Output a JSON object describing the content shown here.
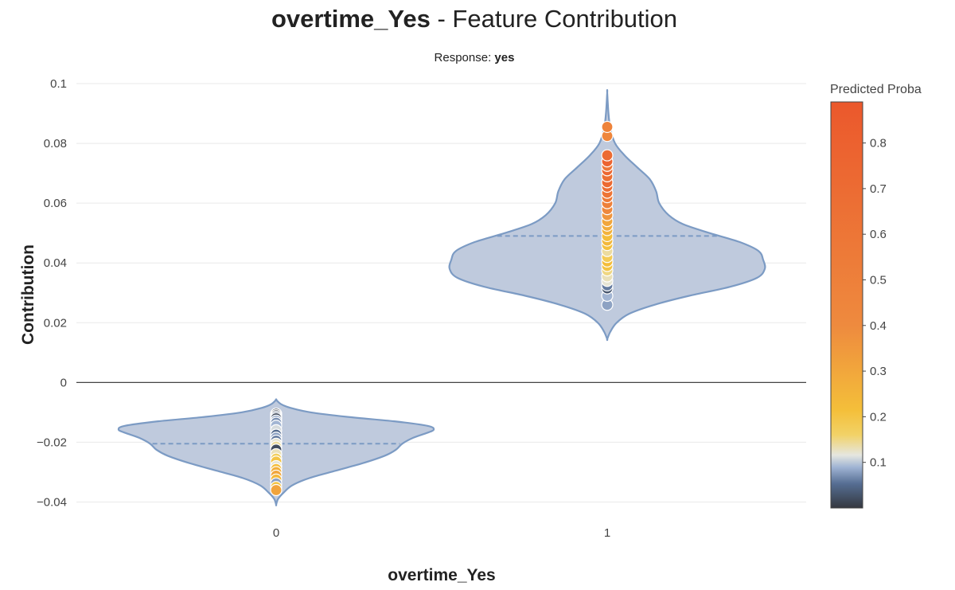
{
  "chart_data": {
    "type": "violin",
    "title_bold": "overtime_Yes",
    "title_rest": " - Feature Contribution",
    "subtitle_label": "Response: ",
    "subtitle_value": "yes",
    "xlabel": "overtime_Yes",
    "ylabel": "Contribution",
    "categories": [
      "0",
      "1"
    ],
    "ylim": [
      -0.046,
      0.1
    ],
    "yticks": [
      -0.04,
      -0.02,
      0,
      0.02,
      0.04,
      0.06,
      0.08,
      0.1
    ],
    "ytick_labels": [
      "−0.04",
      "−0.02",
      "0",
      "0.02",
      "0.04",
      "0.06",
      "0.08",
      "0.1"
    ],
    "grid": true,
    "colorbar": {
      "title": "Predicted Proba",
      "range": [
        0.0,
        0.89
      ],
      "ticks": [
        0.1,
        0.2,
        0.3,
        0.4,
        0.5,
        0.6,
        0.7,
        0.8
      ],
      "tick_labels": [
        "0.1",
        "0.2",
        "0.3",
        "0.4",
        "0.5",
        "0.6",
        "0.7",
        "0.8"
      ],
      "colors": [
        {
          "stop": 0.0,
          "color": "#34383f"
        },
        {
          "stop": 0.06,
          "color": "#566e93"
        },
        {
          "stop": 0.1,
          "color": "#9fb3d3"
        },
        {
          "stop": 0.13,
          "color": "#e5e6e0"
        },
        {
          "stop": 0.18,
          "color": "#f2d267"
        },
        {
          "stop": 0.24,
          "color": "#f4bf3a"
        },
        {
          "stop": 0.45,
          "color": "#ee8a3e"
        },
        {
          "stop": 1.0,
          "color": "#eb582c"
        }
      ]
    },
    "violins": [
      {
        "category": "0",
        "median": -0.0205,
        "profile": [
          {
            "y": -0.0409,
            "w": 0.0
          },
          {
            "y": -0.039,
            "w": 0.012
          },
          {
            "y": -0.037,
            "w": 0.045
          },
          {
            "y": -0.0345,
            "w": 0.1
          },
          {
            "y": -0.032,
            "w": 0.21
          },
          {
            "y": -0.0295,
            "w": 0.38
          },
          {
            "y": -0.027,
            "w": 0.55
          },
          {
            "y": -0.0245,
            "w": 0.69
          },
          {
            "y": -0.0225,
            "w": 0.76
          },
          {
            "y": -0.0205,
            "w": 0.8
          },
          {
            "y": -0.0185,
            "w": 0.87
          },
          {
            "y": -0.017,
            "w": 0.95
          },
          {
            "y": -0.0158,
            "w": 1.0
          },
          {
            "y": -0.0145,
            "w": 0.96
          },
          {
            "y": -0.013,
            "w": 0.75
          },
          {
            "y": -0.0115,
            "w": 0.45
          },
          {
            "y": -0.01,
            "w": 0.22
          },
          {
            "y": -0.0085,
            "w": 0.09
          },
          {
            "y": -0.0072,
            "w": 0.03
          },
          {
            "y": -0.0058,
            "w": 0.0
          }
        ],
        "points": [
          {
            "y": -0.0105,
            "p": 0.0
          },
          {
            "y": -0.011,
            "p": 0.01
          },
          {
            "y": -0.0115,
            "p": 0.04
          },
          {
            "y": -0.012,
            "p": 0.02
          },
          {
            "y": -0.0128,
            "p": 0.08
          },
          {
            "y": -0.0135,
            "p": 0.07
          },
          {
            "y": -0.0145,
            "p": 0.09
          },
          {
            "y": -0.016,
            "p": 0.11
          },
          {
            "y": -0.0175,
            "p": 0.05
          },
          {
            "y": -0.0185,
            "p": 0.08
          },
          {
            "y": -0.0195,
            "p": 0.06
          },
          {
            "y": -0.0205,
            "p": 0.12
          },
          {
            "y": -0.0215,
            "p": 0.14
          },
          {
            "y": -0.0225,
            "p": 0.02
          },
          {
            "y": -0.024,
            "p": 0.13
          },
          {
            "y": -0.0255,
            "p": 0.17
          },
          {
            "y": -0.0265,
            "p": 0.2
          },
          {
            "y": -0.028,
            "p": 0.12
          },
          {
            "y": -0.029,
            "p": 0.22
          },
          {
            "y": -0.03,
            "p": 0.27
          },
          {
            "y": -0.0312,
            "p": 0.3
          },
          {
            "y": -0.0325,
            "p": 0.24
          },
          {
            "y": -0.0338,
            "p": 0.08
          },
          {
            "y": -0.035,
            "p": 0.2
          },
          {
            "y": -0.036,
            "p": 0.31
          }
        ]
      },
      {
        "category": "1",
        "median": 0.049,
        "profile": [
          {
            "y": 0.0145,
            "w": 0.0
          },
          {
            "y": 0.017,
            "w": 0.02
          },
          {
            "y": 0.02,
            "w": 0.06
          },
          {
            "y": 0.023,
            "w": 0.14
          },
          {
            "y": 0.026,
            "w": 0.3
          },
          {
            "y": 0.029,
            "w": 0.52
          },
          {
            "y": 0.032,
            "w": 0.78
          },
          {
            "y": 0.035,
            "w": 0.95
          },
          {
            "y": 0.038,
            "w": 1.0
          },
          {
            "y": 0.041,
            "w": 0.99
          },
          {
            "y": 0.044,
            "w": 0.96
          },
          {
            "y": 0.047,
            "w": 0.84
          },
          {
            "y": 0.05,
            "w": 0.65
          },
          {
            "y": 0.053,
            "w": 0.48
          },
          {
            "y": 0.056,
            "w": 0.39
          },
          {
            "y": 0.06,
            "w": 0.33
          },
          {
            "y": 0.064,
            "w": 0.31
          },
          {
            "y": 0.068,
            "w": 0.27
          },
          {
            "y": 0.072,
            "w": 0.19
          },
          {
            "y": 0.076,
            "w": 0.11
          },
          {
            "y": 0.08,
            "w": 0.05
          },
          {
            "y": 0.085,
            "w": 0.02
          },
          {
            "y": 0.09,
            "w": 0.008
          },
          {
            "y": 0.097,
            "w": 0.0
          }
        ],
        "points": [
          {
            "y": 0.026,
            "p": 0.08
          },
          {
            "y": 0.029,
            "p": 0.09
          },
          {
            "y": 0.0315,
            "p": 0.03
          },
          {
            "y": 0.0325,
            "p": 0.06
          },
          {
            "y": 0.034,
            "p": 0.12
          },
          {
            "y": 0.0355,
            "p": 0.13
          },
          {
            "y": 0.0375,
            "p": 0.15
          },
          {
            "y": 0.039,
            "p": 0.2
          },
          {
            "y": 0.0405,
            "p": 0.22
          },
          {
            "y": 0.042,
            "p": 0.18
          },
          {
            "y": 0.044,
            "p": 0.14
          },
          {
            "y": 0.046,
            "p": 0.21
          },
          {
            "y": 0.0475,
            "p": 0.24
          },
          {
            "y": 0.049,
            "p": 0.22
          },
          {
            "y": 0.051,
            "p": 0.26
          },
          {
            "y": 0.0525,
            "p": 0.28
          },
          {
            "y": 0.054,
            "p": 0.3
          },
          {
            "y": 0.056,
            "p": 0.36
          },
          {
            "y": 0.058,
            "p": 0.42
          },
          {
            "y": 0.06,
            "p": 0.5
          },
          {
            "y": 0.062,
            "p": 0.56
          },
          {
            "y": 0.0635,
            "p": 0.62
          },
          {
            "y": 0.0655,
            "p": 0.68
          },
          {
            "y": 0.067,
            "p": 0.72
          },
          {
            "y": 0.069,
            "p": 0.66
          },
          {
            "y": 0.071,
            "p": 0.74
          },
          {
            "y": 0.0725,
            "p": 0.6
          },
          {
            "y": 0.074,
            "p": 0.78
          },
          {
            "y": 0.076,
            "p": 0.7
          },
          {
            "y": 0.0825,
            "p": 0.44
          },
          {
            "y": 0.0855,
            "p": 0.47
          }
        ]
      }
    ]
  }
}
